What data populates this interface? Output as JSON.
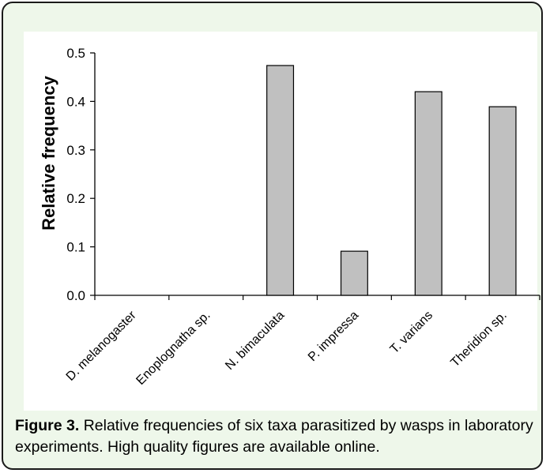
{
  "chart_data": {
    "type": "bar",
    "categories": [
      "D. melanogaster",
      "Enoplognatha sp.",
      "N. bimaculata",
      "P. impressa",
      "T. varians",
      "Theridion sp."
    ],
    "values": [
      0,
      0,
      0.474,
      0.091,
      0.42,
      0.389
    ],
    "ylabel": "Relative frequency",
    "ylim": [
      0,
      0.5
    ],
    "yticks": [
      "0.0",
      "0.1",
      "0.2",
      "0.3",
      "0.4",
      "0.5"
    ],
    "grid": false,
    "bar_color": "#c0c0c0"
  },
  "caption": {
    "label": "Figure 3.",
    "text": " Relative frequencies of six taxa parasitized by wasps in laboratory experiments. High quality figures are available online."
  },
  "colors": {
    "frame_background": "#eef7ea",
    "frame_border": "#1a1a1a"
  }
}
